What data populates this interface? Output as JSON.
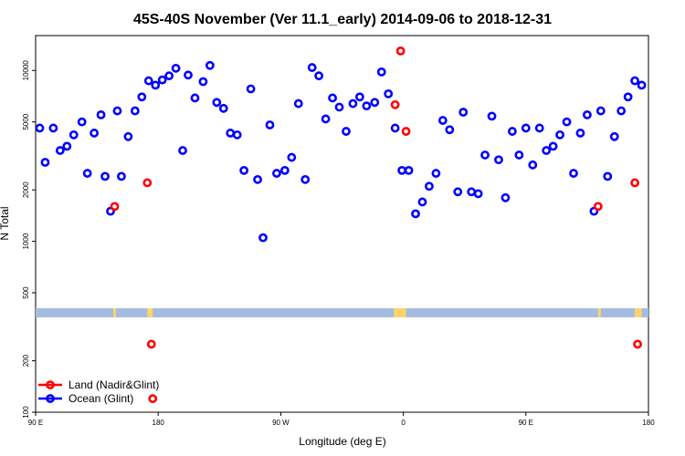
{
  "chart_data": {
    "type": "scatter",
    "title": "45S-40S November (Ver 11.1_early)   2014-09-06 to 2018-12-31",
    "xlabel": "Longitude (deg E)",
    "ylabel": "N Total",
    "x_range_note": "x axis runs from 90 E eastward through 180 and 0 back to 180 (plotted as 90..540)",
    "xlim": [
      90,
      540
    ],
    "xticks": [
      {
        "value": 90,
        "label": "90 E"
      },
      {
        "value": 180,
        "label": "180"
      },
      {
        "value": 270,
        "label": "90 W"
      },
      {
        "value": 360,
        "label": "0"
      },
      {
        "value": 450,
        "label": "90 E"
      },
      {
        "value": 540,
        "label": "180"
      }
    ],
    "yscale": "log",
    "ylim": [
      100,
      16000
    ],
    "yticks": [
      {
        "value": 100,
        "label": "100"
      },
      {
        "value": 200,
        "label": "200"
      },
      {
        "value": 500,
        "label": "500"
      },
      {
        "value": 1000,
        "label": "1000"
      },
      {
        "value": 2000,
        "label": "2000"
      },
      {
        "value": 5000,
        "label": "5000"
      },
      {
        "value": 10000,
        "label": "10000"
      }
    ],
    "legend_position": "bottom-left",
    "colors": {
      "land": "#ff0000",
      "ocean": "#0000ff",
      "ocean_band": "#a4bce0",
      "land_band": "#fcd46a"
    },
    "series": [
      {
        "name": "Land (Nadir&Glint)",
        "key": "land",
        "color": "#ff0000",
        "x": [
          148,
          172,
          175,
          176,
          354,
          358,
          362,
          503,
          530,
          532
        ],
        "y": [
          1600,
          2200,
          250,
          120,
          6300,
          13000,
          4400,
          1600,
          2200,
          250
        ]
      },
      {
        "name": "Ocean (Glint)",
        "key": "ocean",
        "color": "#0000ff",
        "x": [
          93,
          97,
          103,
          108,
          113,
          118,
          124,
          128,
          133,
          138,
          141,
          145,
          150,
          153,
          158,
          163,
          168,
          173,
          178,
          183,
          188,
          193,
          198,
          202,
          207,
          213,
          218,
          223,
          228,
          233,
          238,
          243,
          248,
          253,
          257,
          262,
          267,
          273,
          278,
          283,
          288,
          293,
          298,
          303,
          308,
          313,
          318,
          323,
          328,
          333,
          339,
          344,
          349,
          354,
          359,
          364,
          369,
          374,
          379,
          384,
          389,
          394,
          400,
          404,
          410,
          415,
          420,
          425,
          430,
          435,
          440,
          445,
          450,
          455,
          460,
          465,
          470,
          475,
          480,
          485,
          490,
          495,
          500,
          505,
          510,
          515,
          520,
          525,
          530,
          535
        ],
        "y": [
          4600,
          2900,
          4600,
          3400,
          3600,
          4200,
          5000,
          2500,
          4300,
          5500,
          2400,
          1500,
          5800,
          2400,
          4100,
          5800,
          7000,
          8700,
          8200,
          8800,
          9300,
          10300,
          3400,
          9400,
          6900,
          8600,
          10700,
          6500,
          6000,
          4300,
          4200,
          2600,
          7800,
          2300,
          1050,
          4800,
          2500,
          2600,
          3100,
          6400,
          2300,
          10400,
          9300,
          5200,
          6900,
          6100,
          4400,
          6400,
          7000,
          6200,
          6500,
          9800,
          7300,
          4600,
          2600,
          2600,
          1450,
          1700,
          2100,
          2500,
          5100,
          4500,
          1950,
          5700,
          1950,
          1900,
          3200,
          5400,
          3000,
          1800,
          4400,
          3200,
          4600,
          2800,
          4600,
          3400,
          3600,
          4200,
          5000,
          2500,
          4300,
          5500,
          1500,
          5800,
          2400,
          4100,
          5800,
          7000,
          8700,
          8200
        ]
      }
    ],
    "reference_band": {
      "note": "horizontal bar just above the 500 gridline region showing ocean (blue) and land (yellow) along longitude",
      "land_x": [
        [
          147,
          149
        ],
        [
          172,
          176
        ],
        [
          353,
          362
        ],
        [
          503,
          505
        ],
        [
          530,
          535
        ]
      ]
    }
  }
}
